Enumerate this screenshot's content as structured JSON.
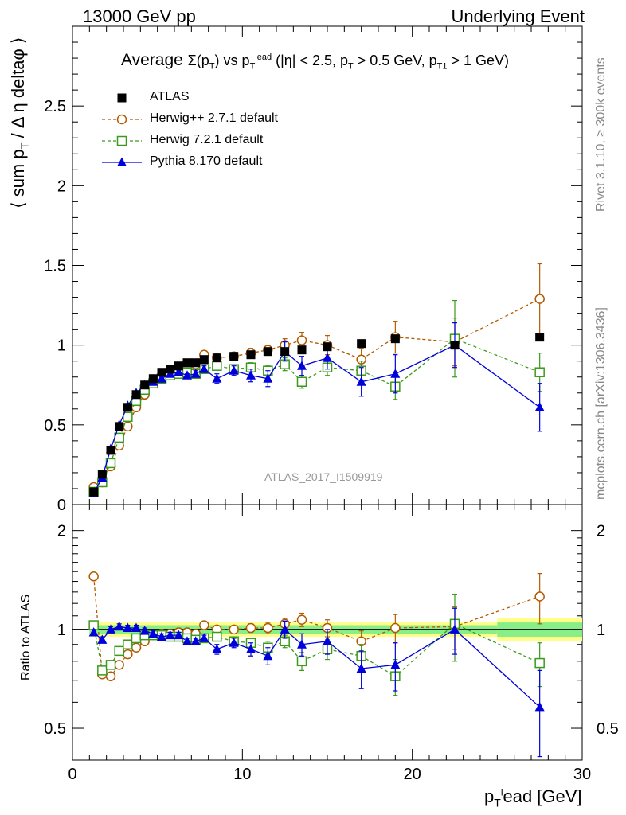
{
  "header": {
    "left": "13000 GeV pp",
    "right": "Underlying Event"
  },
  "title": "Average Σ(p_T) vs p_T^lead (|η| < 2.5, p_T > 0.5 GeV, p_T1 > 1 GeV)",
  "side_labels": {
    "top": "Rivet 3.1.10, ≥ 300k events",
    "bottom": "mcplots.cern.ch [arXiv:1306.3436]"
  },
  "watermark": "ATLAS_2017_I1509919",
  "axes": {
    "ylabel_main": "⟨ sum p_T / Δη deltaφ ⟩",
    "ylabel_ratio": "Ratio to ATLAS",
    "xlabel": "p_T^lead [GeV]"
  },
  "legend": [
    {
      "name": "ATLAS",
      "color": "#000000",
      "marker": "square-filled"
    },
    {
      "name": "Herwig++ 2.7.1 default",
      "color": "#b35900",
      "marker": "circle-open"
    },
    {
      "name": "Herwig 7.2.1 default",
      "color": "#3a9a1a",
      "marker": "square-open"
    },
    {
      "name": "Pythia 8.170 default",
      "color": "#0000dd",
      "marker": "triangle-filled"
    }
  ],
  "chart_data": {
    "type": "scatter",
    "xlim": [
      0,
      30
    ],
    "ylim_main": [
      0,
      3
    ],
    "ylim_ratio": [
      0.4,
      2.4
    ],
    "ratio_log_scale": true,
    "xticks": [
      0,
      10,
      20,
      30
    ],
    "yticks_main": [
      "0",
      "0.5",
      "1",
      "1.5",
      "2",
      "2.5"
    ],
    "yticks_ratio": [
      "0.5",
      "1",
      "2"
    ],
    "x": [
      1.25,
      1.75,
      2.25,
      2.75,
      3.25,
      3.75,
      4.25,
      4.75,
      5.25,
      5.75,
      6.25,
      6.75,
      7.25,
      7.75,
      8.5,
      9.5,
      10.5,
      11.5,
      12.5,
      13.5,
      15.0,
      17.0,
      19.0,
      22.5,
      27.5
    ],
    "series": [
      {
        "name": "ATLAS",
        "values": [
          0.08,
          0.19,
          0.34,
          0.49,
          0.61,
          0.69,
          0.75,
          0.79,
          0.83,
          0.85,
          0.87,
          0.89,
          0.89,
          0.91,
          0.92,
          0.93,
          0.94,
          0.96,
          0.96,
          0.97,
          0.99,
          1.01,
          1.04,
          1.0,
          1.05
        ]
      },
      {
        "name": "Herwig++ 2.7.1 default",
        "values": [
          0.11,
          0.14,
          0.24,
          0.37,
          0.49,
          0.61,
          0.69,
          0.76,
          0.81,
          0.83,
          0.85,
          0.86,
          0.88,
          0.94,
          0.92,
          0.93,
          0.95,
          0.97,
          1.0,
          1.03,
          1.0,
          0.91,
          1.05,
          1.02,
          1.29
        ],
        "errors": [
          0.01,
          0.01,
          0.01,
          0.01,
          0.01,
          0.01,
          0.01,
          0.01,
          0.01,
          0.01,
          0.01,
          0.01,
          0.01,
          0.02,
          0.02,
          0.02,
          0.03,
          0.03,
          0.04,
          0.05,
          0.06,
          0.07,
          0.1,
          0.15,
          0.22
        ]
      },
      {
        "name": "Herwig 7.2.1 default",
        "values": [
          0.08,
          0.14,
          0.26,
          0.42,
          0.55,
          0.65,
          0.72,
          0.76,
          0.79,
          0.81,
          0.82,
          0.83,
          0.82,
          0.85,
          0.87,
          0.85,
          0.86,
          0.84,
          0.88,
          0.77,
          0.86,
          0.84,
          0.74,
          1.04,
          0.83
        ],
        "errors": [
          0.01,
          0.01,
          0.01,
          0.01,
          0.01,
          0.01,
          0.01,
          0.01,
          0.01,
          0.01,
          0.01,
          0.01,
          0.01,
          0.02,
          0.02,
          0.02,
          0.03,
          0.03,
          0.04,
          0.04,
          0.05,
          0.06,
          0.08,
          0.24,
          0.12
        ]
      },
      {
        "name": "Pythia 8.170 default",
        "values": [
          0.07,
          0.17,
          0.35,
          0.5,
          0.62,
          0.7,
          0.75,
          0.77,
          0.79,
          0.82,
          0.83,
          0.81,
          0.82,
          0.85,
          0.79,
          0.84,
          0.81,
          0.79,
          0.96,
          0.87,
          0.92,
          0.77,
          0.82,
          1.0,
          0.61
        ],
        "errors": [
          0.01,
          0.01,
          0.01,
          0.01,
          0.01,
          0.01,
          0.01,
          0.01,
          0.01,
          0.01,
          0.01,
          0.01,
          0.02,
          0.02,
          0.03,
          0.03,
          0.04,
          0.05,
          0.06,
          0.06,
          0.07,
          0.09,
          0.12,
          0.14,
          0.15
        ]
      }
    ],
    "ratio_series": [
      {
        "name": "Herwig++ 2.7.1 default",
        "values": [
          1.45,
          0.73,
          0.72,
          0.78,
          0.84,
          0.88,
          0.92,
          0.96,
          0.97,
          0.97,
          0.98,
          0.98,
          0.97,
          1.03,
          1.0,
          1.0,
          1.01,
          1.01,
          1.04,
          1.07,
          1.01,
          0.92,
          1.01,
          1.02,
          1.26
        ],
        "errors": [
          0.02,
          0.02,
          0.02,
          0.02,
          0.02,
          0.02,
          0.02,
          0.02,
          0.02,
          0.02,
          0.02,
          0.02,
          0.02,
          0.02,
          0.02,
          0.02,
          0.03,
          0.04,
          0.04,
          0.05,
          0.06,
          0.07,
          0.1,
          0.15,
          0.22
        ]
      },
      {
        "name": "Herwig 7.2.1 default",
        "values": [
          1.03,
          0.75,
          0.78,
          0.86,
          0.9,
          0.94,
          0.96,
          0.96,
          0.96,
          0.95,
          0.95,
          0.94,
          0.93,
          0.94,
          0.95,
          0.92,
          0.91,
          0.88,
          0.92,
          0.8,
          0.87,
          0.83,
          0.72,
          1.04,
          0.79
        ],
        "errors": [
          0.02,
          0.02,
          0.02,
          0.02,
          0.02,
          0.02,
          0.02,
          0.02,
          0.02,
          0.02,
          0.02,
          0.02,
          0.02,
          0.02,
          0.02,
          0.03,
          0.03,
          0.04,
          0.04,
          0.05,
          0.06,
          0.07,
          0.09,
          0.24,
          0.12
        ]
      },
      {
        "name": "Pythia 8.170 default",
        "values": [
          0.98,
          0.93,
          1.0,
          1.02,
          1.01,
          1.01,
          0.99,
          0.97,
          0.95,
          0.96,
          0.96,
          0.92,
          0.92,
          0.94,
          0.87,
          0.91,
          0.87,
          0.83,
          1.0,
          0.9,
          0.92,
          0.76,
          0.78,
          1.0,
          0.58
        ],
        "errors": [
          0.02,
          0.02,
          0.02,
          0.02,
          0.02,
          0.02,
          0.02,
          0.02,
          0.02,
          0.02,
          0.02,
          0.02,
          0.02,
          0.02,
          0.03,
          0.03,
          0.04,
          0.05,
          0.06,
          0.07,
          0.08,
          0.1,
          0.13,
          0.16,
          0.17
        ]
      }
    ],
    "ratio_bands": [
      {
        "x_from": 1.0,
        "x_to": 25.0,
        "inner": 0.03,
        "outer": 0.05
      },
      {
        "x_from": 25.0,
        "x_to": 30.0,
        "inner": 0.05,
        "outer": 0.08
      }
    ]
  }
}
